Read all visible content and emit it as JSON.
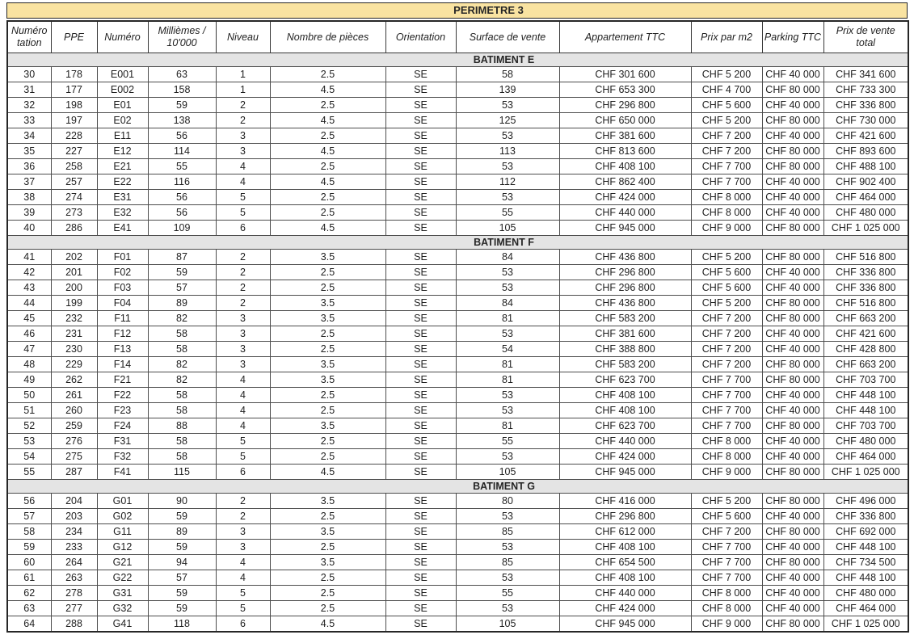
{
  "title": "PERIMETRE 3",
  "columns": [
    "Numéro\ntation",
    "PPE",
    "Numéro",
    "Millièmes /\n10'000",
    "Niveau",
    "Nombre de pièces",
    "Orientation",
    "Surface de vente",
    "Appartement TTC",
    "Prix par m2",
    "Parking TTC",
    "Prix de vente\ntotal"
  ],
  "colors": {
    "title_background": "#F9E3A1",
    "section_background": "#E4E4E4",
    "grid_line": "#4d4d4d",
    "text": "#1f1f1f"
  },
  "sections": [
    {
      "label": "BATIMENT E",
      "rows": [
        [
          "30",
          "178",
          "E001",
          "63",
          "1",
          "2.5",
          "SE",
          "58",
          "CHF 301 600",
          "CHF 5 200",
          "CHF 40 000",
          "CHF 341 600"
        ],
        [
          "31",
          "177",
          "E002",
          "158",
          "1",
          "4.5",
          "SE",
          "139",
          "CHF 653 300",
          "CHF 4 700",
          "CHF 80 000",
          "CHF 733 300"
        ],
        [
          "32",
          "198",
          "E01",
          "59",
          "2",
          "2.5",
          "SE",
          "53",
          "CHF 296 800",
          "CHF 5 600",
          "CHF 40 000",
          "CHF 336 800"
        ],
        [
          "33",
          "197",
          "E02",
          "138",
          "2",
          "4.5",
          "SE",
          "125",
          "CHF 650 000",
          "CHF 5 200",
          "CHF 80 000",
          "CHF 730 000"
        ],
        [
          "34",
          "228",
          "E11",
          "56",
          "3",
          "2.5",
          "SE",
          "53",
          "CHF 381 600",
          "CHF 7 200",
          "CHF 40 000",
          "CHF 421 600"
        ],
        [
          "35",
          "227",
          "E12",
          "114",
          "3",
          "4.5",
          "SE",
          "113",
          "CHF 813 600",
          "CHF 7 200",
          "CHF 80 000",
          "CHF 893 600"
        ],
        [
          "36",
          "258",
          "E21",
          "55",
          "4",
          "2.5",
          "SE",
          "53",
          "CHF 408 100",
          "CHF 7 700",
          "CHF 80 000",
          "CHF 488 100"
        ],
        [
          "37",
          "257",
          "E22",
          "116",
          "4",
          "4.5",
          "SE",
          "112",
          "CHF 862 400",
          "CHF 7 700",
          "CHF 40 000",
          "CHF 902 400"
        ],
        [
          "38",
          "274",
          "E31",
          "56",
          "5",
          "2.5",
          "SE",
          "53",
          "CHF 424 000",
          "CHF 8 000",
          "CHF 40 000",
          "CHF 464 000"
        ],
        [
          "39",
          "273",
          "E32",
          "56",
          "5",
          "2.5",
          "SE",
          "55",
          "CHF 440 000",
          "CHF 8 000",
          "CHF 40 000",
          "CHF 480 000"
        ],
        [
          "40",
          "286",
          "E41",
          "109",
          "6",
          "4.5",
          "SE",
          "105",
          "CHF 945 000",
          "CHF 9 000",
          "CHF 80 000",
          "CHF 1 025 000"
        ]
      ]
    },
    {
      "label": "BATIMENT F",
      "rows": [
        [
          "41",
          "202",
          "F01",
          "87",
          "2",
          "3.5",
          "SE",
          "84",
          "CHF 436 800",
          "CHF 5 200",
          "CHF 80 000",
          "CHF 516 800"
        ],
        [
          "42",
          "201",
          "F02",
          "59",
          "2",
          "2.5",
          "SE",
          "53",
          "CHF 296 800",
          "CHF 5 600",
          "CHF 40 000",
          "CHF 336 800"
        ],
        [
          "43",
          "200",
          "F03",
          "57",
          "2",
          "2.5",
          "SE",
          "53",
          "CHF 296 800",
          "CHF 5 600",
          "CHF 40 000",
          "CHF 336 800"
        ],
        [
          "44",
          "199",
          "F04",
          "89",
          "2",
          "3.5",
          "SE",
          "84",
          "CHF 436 800",
          "CHF 5 200",
          "CHF 80 000",
          "CHF 516 800"
        ],
        [
          "45",
          "232",
          "F11",
          "82",
          "3",
          "3.5",
          "SE",
          "81",
          "CHF 583 200",
          "CHF 7 200",
          "CHF 80 000",
          "CHF 663 200"
        ],
        [
          "46",
          "231",
          "F12",
          "58",
          "3",
          "2.5",
          "SE",
          "53",
          "CHF 381 600",
          "CHF 7 200",
          "CHF 40 000",
          "CHF 421 600"
        ],
        [
          "47",
          "230",
          "F13",
          "58",
          "3",
          "2.5",
          "SE",
          "54",
          "CHF 388 800",
          "CHF 7 200",
          "CHF 40 000",
          "CHF 428 800"
        ],
        [
          "48",
          "229",
          "F14",
          "82",
          "3",
          "3.5",
          "SE",
          "81",
          "CHF 583 200",
          "CHF 7 200",
          "CHF 80 000",
          "CHF 663 200"
        ],
        [
          "49",
          "262",
          "F21",
          "82",
          "4",
          "3.5",
          "SE",
          "81",
          "CHF 623 700",
          "CHF 7 700",
          "CHF 80 000",
          "CHF 703 700"
        ],
        [
          "50",
          "261",
          "F22",
          "58",
          "4",
          "2.5",
          "SE",
          "53",
          "CHF 408 100",
          "CHF 7 700",
          "CHF 40 000",
          "CHF 448 100"
        ],
        [
          "51",
          "260",
          "F23",
          "58",
          "4",
          "2.5",
          "SE",
          "53",
          "CHF 408 100",
          "CHF 7 700",
          "CHF 40 000",
          "CHF 448 100"
        ],
        [
          "52",
          "259",
          "F24",
          "88",
          "4",
          "3.5",
          "SE",
          "81",
          "CHF 623 700",
          "CHF 7 700",
          "CHF 80 000",
          "CHF 703 700"
        ],
        [
          "53",
          "276",
          "F31",
          "58",
          "5",
          "2.5",
          "SE",
          "55",
          "CHF 440 000",
          "CHF 8 000",
          "CHF 40 000",
          "CHF 480 000"
        ],
        [
          "54",
          "275",
          "F32",
          "58",
          "5",
          "2.5",
          "SE",
          "53",
          "CHF 424 000",
          "CHF 8 000",
          "CHF 40 000",
          "CHF 464 000"
        ],
        [
          "55",
          "287",
          "F41",
          "115",
          "6",
          "4.5",
          "SE",
          "105",
          "CHF 945 000",
          "CHF 9 000",
          "CHF 80 000",
          "CHF 1 025 000"
        ]
      ]
    },
    {
      "label": "BATIMENT G",
      "rows": [
        [
          "56",
          "204",
          "G01",
          "90",
          "2",
          "3.5",
          "SE",
          "80",
          "CHF 416 000",
          "CHF 5 200",
          "CHF 80 000",
          "CHF 496 000"
        ],
        [
          "57",
          "203",
          "G02",
          "59",
          "2",
          "2.5",
          "SE",
          "53",
          "CHF 296 800",
          "CHF 5 600",
          "CHF 40 000",
          "CHF 336 800"
        ],
        [
          "58",
          "234",
          "G11",
          "89",
          "3",
          "3.5",
          "SE",
          "85",
          "CHF 612 000",
          "CHF 7 200",
          "CHF 80 000",
          "CHF 692 000"
        ],
        [
          "59",
          "233",
          "G12",
          "59",
          "3",
          "2.5",
          "SE",
          "53",
          "CHF 408 100",
          "CHF 7 700",
          "CHF 40 000",
          "CHF 448 100"
        ],
        [
          "60",
          "264",
          "G21",
          "94",
          "4",
          "3.5",
          "SE",
          "85",
          "CHF 654 500",
          "CHF 7 700",
          "CHF 80 000",
          "CHF 734 500"
        ],
        [
          "61",
          "263",
          "G22",
          "57",
          "4",
          "2.5",
          "SE",
          "53",
          "CHF 408 100",
          "CHF 7 700",
          "CHF 40 000",
          "CHF 448 100"
        ],
        [
          "62",
          "278",
          "G31",
          "59",
          "5",
          "2.5",
          "SE",
          "55",
          "CHF 440 000",
          "CHF 8 000",
          "CHF 40 000",
          "CHF 480 000"
        ],
        [
          "63",
          "277",
          "G32",
          "59",
          "5",
          "2.5",
          "SE",
          "53",
          "CHF 424 000",
          "CHF 8 000",
          "CHF 40 000",
          "CHF 464 000"
        ],
        [
          "64",
          "288",
          "G41",
          "118",
          "6",
          "4.5",
          "SE",
          "105",
          "CHF 945 000",
          "CHF 9 000",
          "CHF 80 000",
          "CHF 1 025 000"
        ]
      ]
    }
  ]
}
